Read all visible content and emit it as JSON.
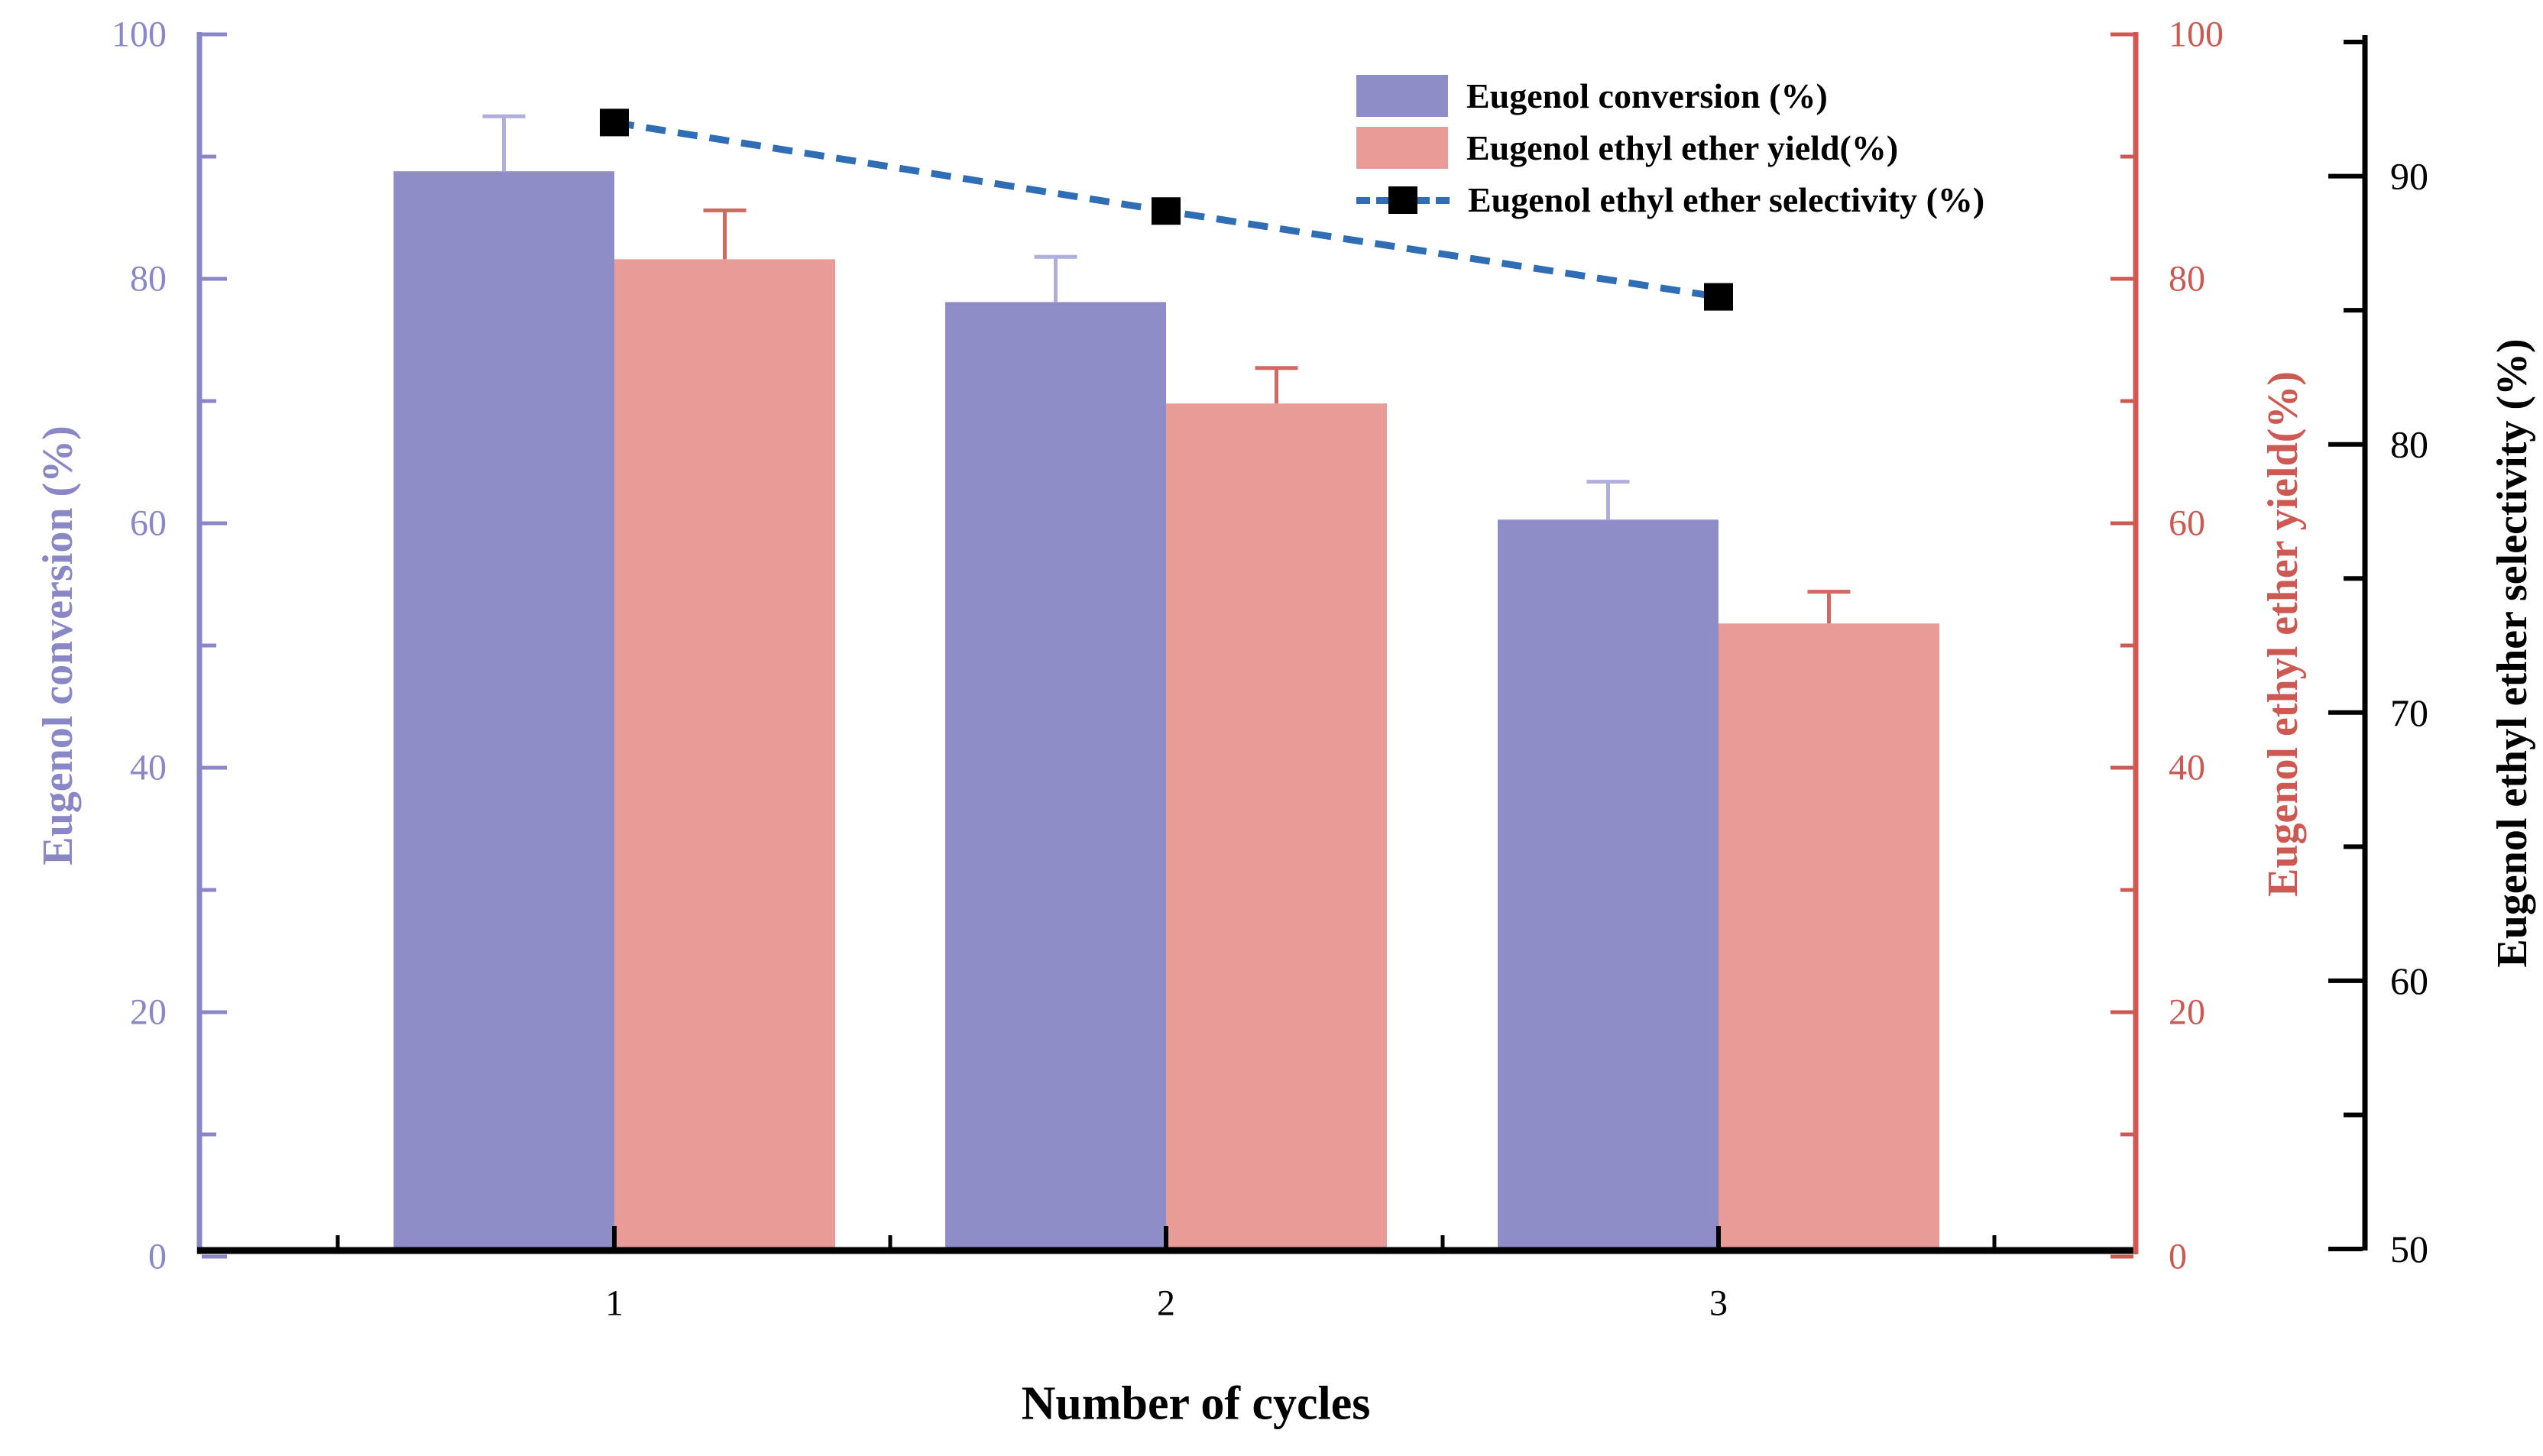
{
  "figure": {
    "xlabel": "Number of cycles",
    "left_axis_title": "Eugenol conversion (%)",
    "right_axis_title": "Eugenol ethyl ether yield(%)",
    "far_right_axis_title": "Eugenol ethyl ether selectivity (%)"
  },
  "legend": {
    "items": [
      {
        "label": "Eugenol conversion (%)",
        "type": "swatch",
        "color": "#8f8dc7"
      },
      {
        "label": "Eugenol ethyl ether yield(%)",
        "type": "swatch",
        "color": "#e99b97"
      },
      {
        "label": "Eugenol ethyl ether selectivity (%)",
        "type": "line-marker",
        "color": "#2f6eb5"
      }
    ]
  },
  "chart_data": {
    "type": "bar",
    "categories": [
      "1",
      "2",
      "3"
    ],
    "xlabel": "Number of cycles",
    "grid": false,
    "legend_position": "top-right",
    "series": [
      {
        "name": "Eugenol conversion (%)",
        "type": "bar",
        "axis": "left",
        "color": "#8f8dc7",
        "error_color": "#b0aedd",
        "values": [
          88.8,
          78.1,
          60.3
        ],
        "errors": [
          4.5,
          3.7,
          3.1
        ]
      },
      {
        "name": "Eugenol ethyl ether yield(%)",
        "type": "bar",
        "axis": "right",
        "color": "#e99b97",
        "error_color": "#cf6a63",
        "values": [
          81.6,
          69.8,
          51.8
        ],
        "errors": [
          4.0,
          2.9,
          2.6
        ]
      },
      {
        "name": "Eugenol ethyl ether selectivity (%)",
        "type": "line",
        "axis": "far_right",
        "line_color": "#2f6eb5",
        "marker_color": "#000000",
        "line_style": "dashed",
        "values": [
          92.0,
          88.7,
          85.5
        ]
      }
    ],
    "axes": {
      "left": {
        "label": "Eugenol conversion (%)",
        "color": "#8987c6",
        "min": 0,
        "max": 100,
        "major_ticks": [
          "0",
          "20",
          "40",
          "60",
          "80",
          "100"
        ],
        "minor_step": 10
      },
      "right": {
        "label": "Eugenol ethyl ether yield(%)",
        "color": "#cd5a52",
        "min": 0,
        "max": 100,
        "major_ticks": [
          "0",
          "20",
          "40",
          "60",
          "80",
          "100"
        ],
        "minor_step": 10
      },
      "far_right": {
        "label": "Eugenol ethyl ether selectivity (%)",
        "color": "#000000",
        "min": 50,
        "max": 95.3,
        "major_ticks": [
          "50",
          "60",
          "70",
          "80",
          "90"
        ],
        "minor_step": 5
      },
      "x": {
        "label": "Number of cycles",
        "color": "#000000",
        "major_ticks": [
          "1",
          "2",
          "3"
        ]
      }
    }
  }
}
